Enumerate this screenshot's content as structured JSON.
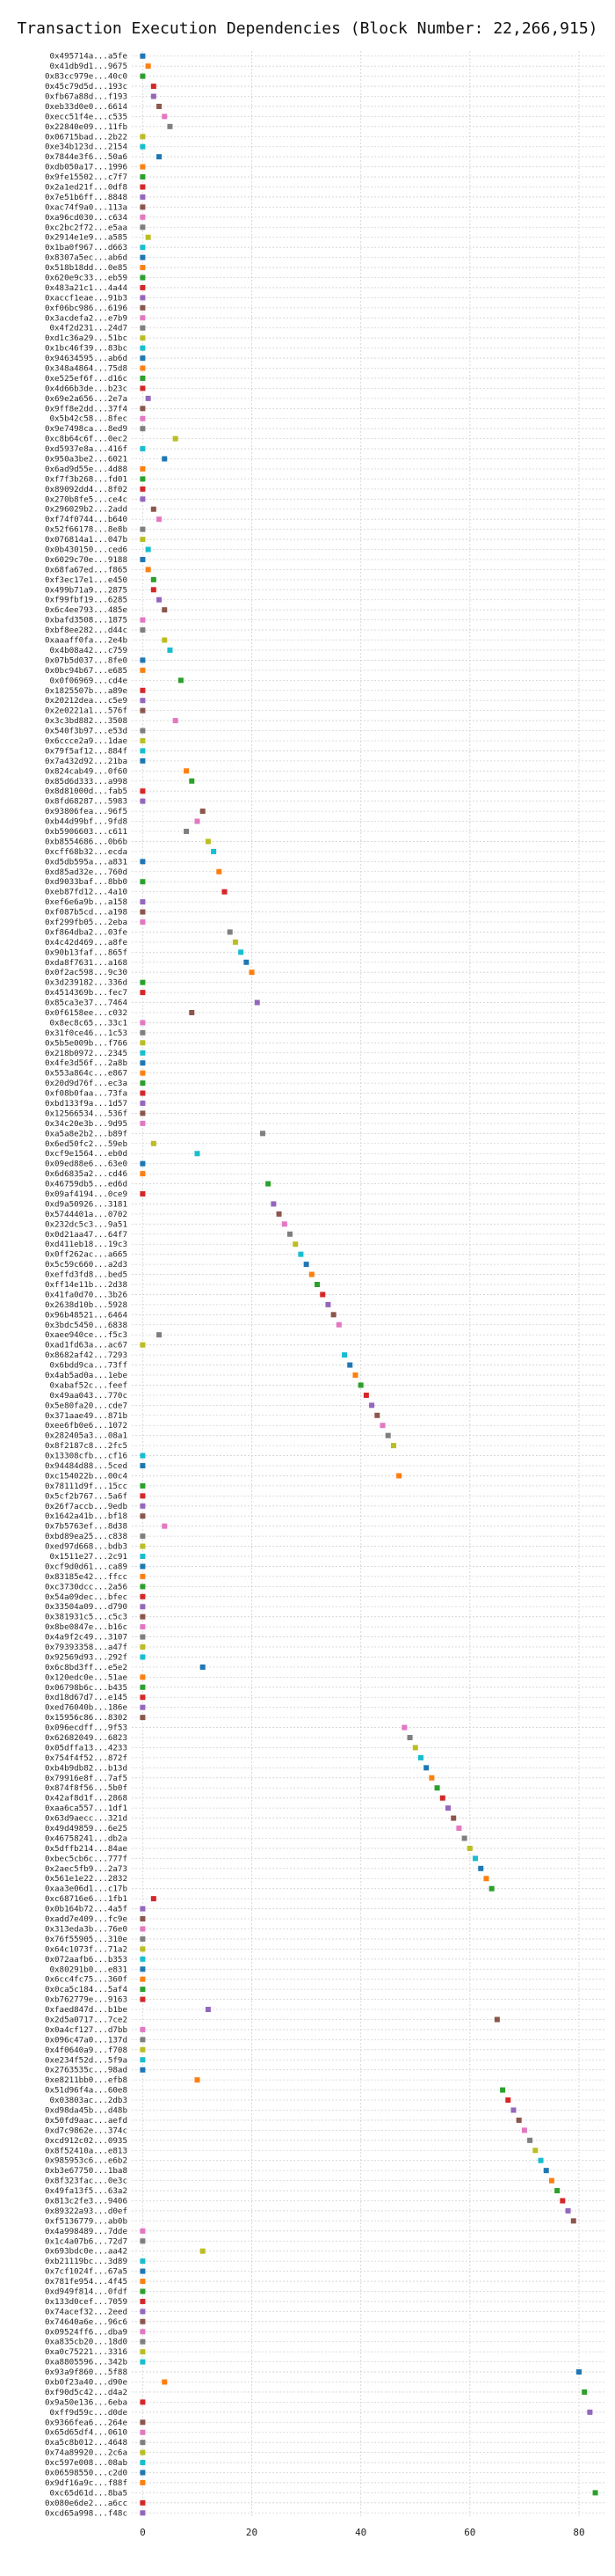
{
  "chart_data": {
    "type": "scatter",
    "title": "Transaction Execution Dependencies (Block Number: 22,266,915)",
    "xlabel": "",
    "ylabel": "",
    "xlim": [
      -2,
      85
    ],
    "xticks": [
      0,
      20,
      40,
      60,
      80
    ],
    "grid": true,
    "legend": "none",
    "transactions": [
      {
        "label": "0x495714a...a5fe",
        "x": 0
      },
      {
        "label": "0x41db9d1...9675",
        "x": 1
      },
      {
        "label": "0x83cc979e...40c0",
        "x": 0
      },
      {
        "label": "0x45c79d5d...193c",
        "x": 2
      },
      {
        "label": "0xfb67a88d...f193",
        "x": 2
      },
      {
        "label": "0xeb33d0e0...6614",
        "x": 3
      },
      {
        "label": "0xecc51f4e...c535",
        "x": 4
      },
      {
        "label": "0x22840e09...11fb",
        "x": 5
      },
      {
        "label": "0x06715bad...2b22",
        "x": 0
      },
      {
        "label": "0xe34b123d...2154",
        "x": 0
      },
      {
        "label": "0x7844e3f6...50a6",
        "x": 3
      },
      {
        "label": "0xdb050a17...1996",
        "x": 0
      },
      {
        "label": "0x9fe15502...c7f7",
        "x": 0
      },
      {
        "label": "0x2a1ed21f...0df8",
        "x": 0
      },
      {
        "label": "0x7e51b6ff...8848",
        "x": 0
      },
      {
        "label": "0xac74f9a0...113a",
        "x": 0
      },
      {
        "label": "0xa96cd030...c634",
        "x": 0
      },
      {
        "label": "0xc2bc2f72...e5aa",
        "x": 0
      },
      {
        "label": "0x2914e1e9...a585",
        "x": 1
      },
      {
        "label": "0x1ba0f967...d663",
        "x": 0
      },
      {
        "label": "0x8307a5ec...ab6d",
        "x": 0
      },
      {
        "label": "0x518b18dd...0e85",
        "x": 0
      },
      {
        "label": "0x620e9c33...eb59",
        "x": 0
      },
      {
        "label": "0x483a21c1...4a44",
        "x": 0
      },
      {
        "label": "0xaccf1eae...91b3",
        "x": 0
      },
      {
        "label": "0xf06bc986...6196",
        "x": 0
      },
      {
        "label": "0x3acdefa2...e7b9",
        "x": 0
      },
      {
        "label": "0x4f2d231...24d7",
        "x": 0
      },
      {
        "label": "0xd1c36a29...51bc",
        "x": 0
      },
      {
        "label": "0x1bc46f39...83bc",
        "x": 0
      },
      {
        "label": "0x94634595...ab6d",
        "x": 0
      },
      {
        "label": "0x348a4864...75d8",
        "x": 0
      },
      {
        "label": "0xe525ef6f...d16c",
        "x": 0
      },
      {
        "label": "0x4d66b3de...b23c",
        "x": 0
      },
      {
        "label": "0x69e2a656...2e7a",
        "x": 1
      },
      {
        "label": "0x9ff8e2dd...37f4",
        "x": 0
      },
      {
        "label": "0x5b42c58...8fec",
        "x": 0
      },
      {
        "label": "0x9e7498ca...8ed9",
        "x": 0
      },
      {
        "label": "0xc8b64c6f...0ec2",
        "x": 6
      },
      {
        "label": "0xd5937e8a...416f",
        "x": 0
      },
      {
        "label": "0x950a3be2...6021",
        "x": 4
      },
      {
        "label": "0x6ad9d55e...4d88",
        "x": 0
      },
      {
        "label": "0xf7f3b268...fd01",
        "x": 0
      },
      {
        "label": "0x89092dd4...8f02",
        "x": 0
      },
      {
        "label": "0x270b8fe5...ce4c",
        "x": 0
      },
      {
        "label": "0x296029b2...2add",
        "x": 2
      },
      {
        "label": "0xf74f0744...b640",
        "x": 3
      },
      {
        "label": "0x52f66178...8e8b",
        "x": 0
      },
      {
        "label": "0x076814a1...047b",
        "x": 0
      },
      {
        "label": "0x0b430150...ced6",
        "x": 1
      },
      {
        "label": "0x6029c70e...9188",
        "x": 0
      },
      {
        "label": "0x68fa67ed...f865",
        "x": 1
      },
      {
        "label": "0xf3ec17e1...e450",
        "x": 2
      },
      {
        "label": "0x499b71a9...2875",
        "x": 2
      },
      {
        "label": "0xf99fbf19...6285",
        "x": 3
      },
      {
        "label": "0x6c4ee793...485e",
        "x": 4
      },
      {
        "label": "0xbafd3508...1875",
        "x": 0
      },
      {
        "label": "0xbf8ee282...d44c",
        "x": 0
      },
      {
        "label": "0xaaaff0fa...2e4b",
        "x": 4
      },
      {
        "label": "0x4b08a42...c759",
        "x": 5
      },
      {
        "label": "0x07b5d037...8fe0",
        "x": 0
      },
      {
        "label": "0x0bc94b67...e685",
        "x": 0
      },
      {
        "label": "0x0f06969...cd4e",
        "x": 7
      },
      {
        "label": "0x1825507b...a89e",
        "x": 0
      },
      {
        "label": "0x20212dea...c5e9",
        "x": 0
      },
      {
        "label": "0x2e0221a1...576f",
        "x": 0
      },
      {
        "label": "0x3c3bd882...3508",
        "x": 6
      },
      {
        "label": "0x540f3b97...e53d",
        "x": 0
      },
      {
        "label": "0x6ccce2a9...1dae",
        "x": 0
      },
      {
        "label": "0x79f5af12...884f",
        "x": 0
      },
      {
        "label": "0x7a432d92...21ba",
        "x": 0
      },
      {
        "label": "0x824cab49...0f60",
        "x": 8
      },
      {
        "label": "0x85d6d333...a998",
        "x": 9
      },
      {
        "label": "0x8d81000d...fab5",
        "x": 0
      },
      {
        "label": "0x8fd68287...5983",
        "x": 0
      },
      {
        "label": "0x93806fea...96f5",
        "x": 11
      },
      {
        "label": "0xb44d99bf...9fd8",
        "x": 10
      },
      {
        "label": "0xb5906603...c611",
        "x": 8
      },
      {
        "label": "0xb8554686...0b6b",
        "x": 12
      },
      {
        "label": "0xcff68b32...ecda",
        "x": 13
      },
      {
        "label": "0xd5db595a...a831",
        "x": 0
      },
      {
        "label": "0xd85ad32e...760d",
        "x": 14
      },
      {
        "label": "0xd9033baf...8bb0",
        "x": 0
      },
      {
        "label": "0xeb87fd12...4a10",
        "x": 15
      },
      {
        "label": "0xef6e6a9b...a158",
        "x": 0
      },
      {
        "label": "0xf087b5cd...a198",
        "x": 0
      },
      {
        "label": "0xf299fb05...2eba",
        "x": 0
      },
      {
        "label": "0xf864dba2...03fe",
        "x": 16
      },
      {
        "label": "0x4c42d469...a8fe",
        "x": 17
      },
      {
        "label": "0x90b13faf...865f",
        "x": 18
      },
      {
        "label": "0xda8f7631...a168",
        "x": 19
      },
      {
        "label": "0x0f2ac598...9c30",
        "x": 20
      },
      {
        "label": "0x3d239182...336d",
        "x": 0
      },
      {
        "label": "0x4514369b...fec7",
        "x": 0
      },
      {
        "label": "0x85ca3e37...7464",
        "x": 21
      },
      {
        "label": "0x0f6158ee...c032",
        "x": 9
      },
      {
        "label": "0x8ec8c65...33c1",
        "x": 0
      },
      {
        "label": "0x31f0ce46...1c53",
        "x": 0
      },
      {
        "label": "0x5b5e009b...f766",
        "x": 0
      },
      {
        "label": "0x218b0972...2345",
        "x": 0
      },
      {
        "label": "0x4fe3d56f...2a8b",
        "x": 0
      },
      {
        "label": "0x553a864c...e867",
        "x": 0
      },
      {
        "label": "0x20d9d76f...ec3a",
        "x": 0
      },
      {
        "label": "0xf08b0faa...73fa",
        "x": 0
      },
      {
        "label": "0xbd133f9a...1d57",
        "x": 0
      },
      {
        "label": "0x12566534...536f",
        "x": 0
      },
      {
        "label": "0x34c20e3b...9d95",
        "x": 0
      },
      {
        "label": "0xa5a8e2b2...b89f",
        "x": 22
      },
      {
        "label": "0x6ed50fc2...59eb",
        "x": 2
      },
      {
        "label": "0xcf9e1564...eb0d",
        "x": 10
      },
      {
        "label": "0x09ed88e6...63e0",
        "x": 0
      },
      {
        "label": "0x6d6835a2...cd46",
        "x": 0
      },
      {
        "label": "0x46759db5...ed6d",
        "x": 23
      },
      {
        "label": "0x09af4194...0ce9",
        "x": 0
      },
      {
        "label": "0xd9a50926...3181",
        "x": 24
      },
      {
        "label": "0x5744401a...0702",
        "x": 25
      },
      {
        "label": "0x232dc5c3...9a51",
        "x": 26
      },
      {
        "label": "0x0d21aa47...64f7",
        "x": 27
      },
      {
        "label": "0xd411eb18...19c3",
        "x": 28
      },
      {
        "label": "0x0ff262ac...a665",
        "x": 29
      },
      {
        "label": "0x5c59c660...a2d3",
        "x": 30
      },
      {
        "label": "0xeffd3fd8...bed5",
        "x": 31
      },
      {
        "label": "0xff14e11b...2d38",
        "x": 32
      },
      {
        "label": "0x41fa0d70...3b26",
        "x": 33
      },
      {
        "label": "0x2638d10b...5928",
        "x": 34
      },
      {
        "label": "0x96b48521...6464",
        "x": 35
      },
      {
        "label": "0x3bdc5450...6838",
        "x": 36
      },
      {
        "label": "0xaee940ce...f5c3",
        "x": 3
      },
      {
        "label": "0xad1fd63a...ac67",
        "x": 0
      },
      {
        "label": "0x8682af42...7293",
        "x": 37
      },
      {
        "label": "0x6bdd9ca...73ff",
        "x": 38
      },
      {
        "label": "0x4ab5ad0a...1ebe",
        "x": 39
      },
      {
        "label": "0xabaf52c...feef",
        "x": 40
      },
      {
        "label": "0x49aa043...770c",
        "x": 41
      },
      {
        "label": "0x5e80fa20...cde7",
        "x": 42
      },
      {
        "label": "0x371aae49...871b",
        "x": 43
      },
      {
        "label": "0xee6fb0e6...1072",
        "x": 44
      },
      {
        "label": "0x282405a3...08a1",
        "x": 45
      },
      {
        "label": "0x8f2187c8...2fc5",
        "x": 46
      },
      {
        "label": "0x13308cfb...cf16",
        "x": 0
      },
      {
        "label": "0x94484d88...5ced",
        "x": 0
      },
      {
        "label": "0xc154022b...00c4",
        "x": 47
      },
      {
        "label": "0x78111d9f...15cc",
        "x": 0
      },
      {
        "label": "0x5cf2b767...5a6f",
        "x": 0
      },
      {
        "label": "0x26f7accb...9edb",
        "x": 0
      },
      {
        "label": "0x1642a41b...bf18",
        "x": 0
      },
      {
        "label": "0x7b5763ef...8d38",
        "x": 4
      },
      {
        "label": "0xbd89ea25...c838",
        "x": 0
      },
      {
        "label": "0xed97d668...bdb3",
        "x": 0
      },
      {
        "label": "0x1511e27...2c91",
        "x": 0
      },
      {
        "label": "0xcf9d0d61...ca89",
        "x": 0
      },
      {
        "label": "0x83185e42...ffcc",
        "x": 0
      },
      {
        "label": "0xc3730dcc...2a56",
        "x": 0
      },
      {
        "label": "0x54a09dec...bfec",
        "x": 0
      },
      {
        "label": "0x33504a09...d790",
        "x": 0
      },
      {
        "label": "0x381931c5...c5c3",
        "x": 0
      },
      {
        "label": "0x8be0847e...b16c",
        "x": 0
      },
      {
        "label": "0x4a9f2c49...3107",
        "x": 0
      },
      {
        "label": "0x79393358...a47f",
        "x": 0
      },
      {
        "label": "0x92569d93...292f",
        "x": 0
      },
      {
        "label": "0x6c8bd3ff...e5e2",
        "x": 11
      },
      {
        "label": "0x120edc0e...51ae",
        "x": 0
      },
      {
        "label": "0x06798b6c...b435",
        "x": 0
      },
      {
        "label": "0xd18d67d7...e145",
        "x": 0
      },
      {
        "label": "0xed76040b...186e",
        "x": 0
      },
      {
        "label": "0x15956c86...8302",
        "x": 0
      },
      {
        "label": "0x096ecdff...9f53",
        "x": 48
      },
      {
        "label": "0x62682049...6823",
        "x": 49
      },
      {
        "label": "0x05dffa13...4233",
        "x": 50
      },
      {
        "label": "0x754f4f52...872f",
        "x": 51
      },
      {
        "label": "0xb4b9db82...b13d",
        "x": 52
      },
      {
        "label": "0x79916e8f...7af5",
        "x": 53
      },
      {
        "label": "0x874f8f56...5b0f",
        "x": 54
      },
      {
        "label": "0x42af8d1f...2868",
        "x": 55
      },
      {
        "label": "0xaa6ca557...1df1",
        "x": 56
      },
      {
        "label": "0x63d9aecc...321d",
        "x": 57
      },
      {
        "label": "0x49d49859...6e25",
        "x": 58
      },
      {
        "label": "0x46758241...db2a",
        "x": 59
      },
      {
        "label": "0x5dffb214...84ae",
        "x": 60
      },
      {
        "label": "0xbec5cb6c...777f",
        "x": 61
      },
      {
        "label": "0x2aec5fb9...2a73",
        "x": 62
      },
      {
        "label": "0x561e1e22...2832",
        "x": 63
      },
      {
        "label": "0xaa3e06d1...c17b",
        "x": 64
      },
      {
        "label": "0xc68716e6...1fb1",
        "x": 2
      },
      {
        "label": "0x0b164b72...4a5f",
        "x": 0
      },
      {
        "label": "0xadd7e409...fc9e",
        "x": 0
      },
      {
        "label": "0x313eda3b...76e0",
        "x": 0
      },
      {
        "label": "0x76f55905...310e",
        "x": 0
      },
      {
        "label": "0x64c1073f...71a2",
        "x": 0
      },
      {
        "label": "0x072aafb6...b353",
        "x": 0
      },
      {
        "label": "0x80291b0...e831",
        "x": 0
      },
      {
        "label": "0x6cc4fc75...360f",
        "x": 0
      },
      {
        "label": "0x0ca5c184...5af4",
        "x": 0
      },
      {
        "label": "0xb762779e...9163",
        "x": 0
      },
      {
        "label": "0xfaed847d...b1be",
        "x": 12
      },
      {
        "label": "0x2d5a0717...7ce2",
        "x": 65
      },
      {
        "label": "0x0a4cf127...d7bb",
        "x": 0
      },
      {
        "label": "0x096c47a0...137d",
        "x": 0
      },
      {
        "label": "0x4f0640a9...f708",
        "x": 0
      },
      {
        "label": "0xe234f52d...5f9a",
        "x": 0
      },
      {
        "label": "0x2763535c...98ad",
        "x": 0
      },
      {
        "label": "0xe8211bb0...efb8",
        "x": 10
      },
      {
        "label": "0x51d96f4a...60e8",
        "x": 66
      },
      {
        "label": "0x03803ac...2db3",
        "x": 67
      },
      {
        "label": "0xd98da45b...d48b",
        "x": 68
      },
      {
        "label": "0x50fd9aac...aefd",
        "x": 69
      },
      {
        "label": "0xd7c9862e...374c",
        "x": 70
      },
      {
        "label": "0xcd912c02...0935",
        "x": 71
      },
      {
        "label": "0x8f52410a...e813",
        "x": 72
      },
      {
        "label": "0x985953c6...e6b2",
        "x": 73
      },
      {
        "label": "0xb3e67750...1ba8",
        "x": 74
      },
      {
        "label": "0x8f323fac...0e3c",
        "x": 75
      },
      {
        "label": "0x49fa13f5...63a2",
        "x": 76
      },
      {
        "label": "0x813c2fe3...9406",
        "x": 77
      },
      {
        "label": "0x89322a93...d0ef",
        "x": 78
      },
      {
        "label": "0xf5136779...ab0b",
        "x": 79
      },
      {
        "label": "0x4a998489...7dde",
        "x": 0
      },
      {
        "label": "0x1c4a07b6...72d7",
        "x": 0
      },
      {
        "label": "0x693bdc0e...aa42",
        "x": 11
      },
      {
        "label": "0xb21119bc...3d89",
        "x": 0
      },
      {
        "label": "0x7cf1024f...67a5",
        "x": 0
      },
      {
        "label": "0x781fe954...4f45",
        "x": 0
      },
      {
        "label": "0xd949f814...0fdf",
        "x": 0
      },
      {
        "label": "0x133d0cef...7059",
        "x": 0
      },
      {
        "label": "0x74acef32...2eed",
        "x": 0
      },
      {
        "label": "0x74640a6e...96c6",
        "x": 0
      },
      {
        "label": "0x09524ff6...dba9",
        "x": 0
      },
      {
        "label": "0xa835cb20...18d0",
        "x": 0
      },
      {
        "label": "0xa0c75221...3316",
        "x": 0
      },
      {
        "label": "0xa8805596...342b",
        "x": 0
      },
      {
        "label": "0x93a9f860...5f88",
        "x": 80
      },
      {
        "label": "0xb0f23a40...d90e",
        "x": 4
      },
      {
        "label": "0xf90d5c42...d4a2",
        "x": 81
      },
      {
        "label": "0x9a50e136...6eba",
        "x": 0
      },
      {
        "label": "0xff9d59c...d0de",
        "x": 82
      },
      {
        "label": "0x9366fea6...264e",
        "x": 0
      },
      {
        "label": "0x65d65df4...0610",
        "x": 0
      },
      {
        "label": "0xa5c8b012...4648",
        "x": 0
      },
      {
        "label": "0x74a89920...2c6a",
        "x": 0
      },
      {
        "label": "0xc597e008...08ab",
        "x": 0
      },
      {
        "label": "0x06598550...c2d0",
        "x": 0
      },
      {
        "label": "0x9df16a9c...f88f",
        "x": 0
      },
      {
        "label": "0xc65d61d...8ba5",
        "x": 83
      },
      {
        "label": "0x080e6de2...a6cc",
        "x": 0
      },
      {
        "label": "0xcd65a998...f48c",
        "x": 0
      }
    ]
  },
  "colors": {
    "palette": [
      "#1f77b4",
      "#ff7f0e",
      "#2ca02c",
      "#d62728",
      "#9467bd",
      "#8c564b",
      "#e377c2",
      "#7f7f7f",
      "#bcbd22",
      "#17becf"
    ],
    "grid": "#d2d2d2",
    "text": "#222222"
  }
}
